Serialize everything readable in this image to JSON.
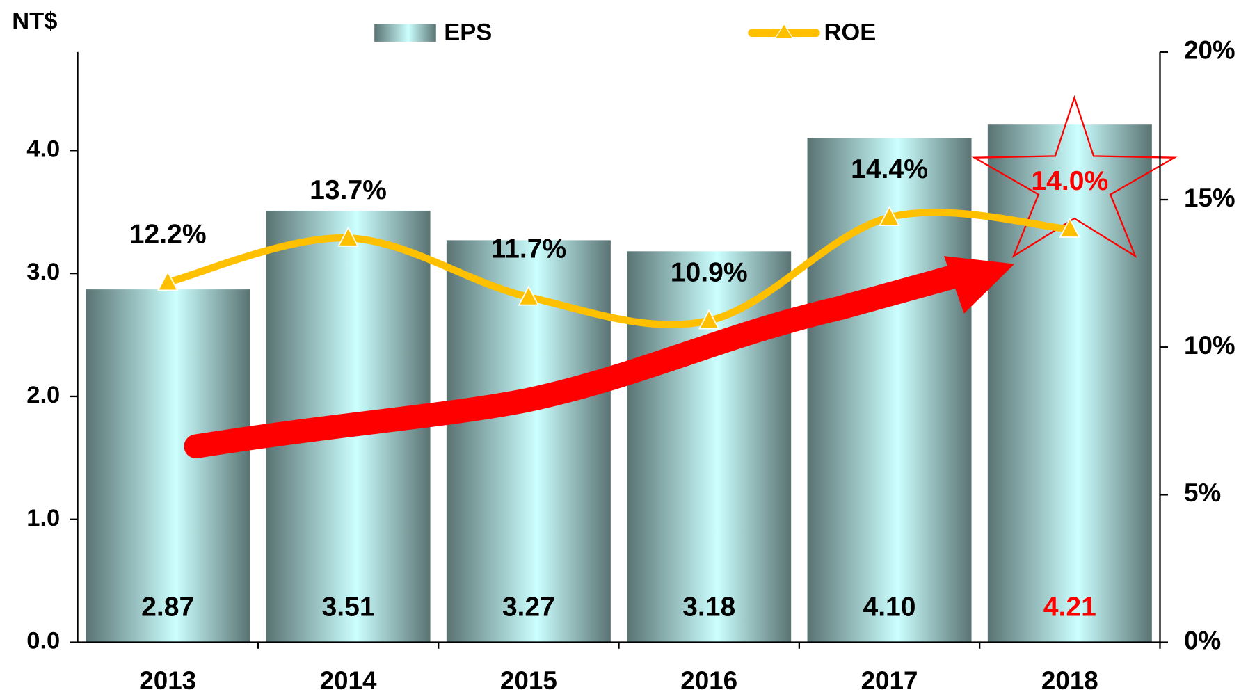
{
  "chart_data": {
    "type": "bar",
    "categories": [
      "2013",
      "2014",
      "2015",
      "2016",
      "2017",
      "2018"
    ],
    "y_label": "NT$",
    "series": [
      {
        "name": "EPS",
        "type": "bar",
        "color": "#ccffff",
        "edge_color": "#5a7373",
        "values": [
          2.87,
          3.51,
          3.27,
          3.18,
          4.1,
          4.21
        ],
        "value_labels": [
          "2.87",
          "3.51",
          "3.27",
          "3.18",
          "4.10",
          "4.21"
        ]
      },
      {
        "name": "ROE",
        "type": "line",
        "axis": "y2",
        "color": "#ffc000",
        "values": [
          12.2,
          13.7,
          11.7,
          10.9,
          14.4,
          14.0
        ],
        "value_labels": [
          "12.2%",
          "13.7%",
          "11.7%",
          "10.9%",
          "14.4%",
          "14.0%"
        ]
      }
    ],
    "highlight_index": 5,
    "highlight_color": "#ff0000",
    "ylim": [
      0,
      4.8
    ],
    "yticks": [
      {
        "value": 0,
        "label": "0.0"
      },
      {
        "value": 1,
        "label": "1.0"
      },
      {
        "value": 2,
        "label": "2.0"
      },
      {
        "value": 3,
        "label": "3.0"
      },
      {
        "value": 4,
        "label": "4.0"
      }
    ],
    "y2lim": [
      0,
      20
    ],
    "y2ticks": [
      {
        "value": 0,
        "label": "0%"
      },
      {
        "value": 5,
        "label": "5%"
      },
      {
        "value": 10,
        "label": "10%"
      },
      {
        "value": 15,
        "label": "15%"
      },
      {
        "value": 20,
        "label": "20%"
      }
    ],
    "grid": false
  }
}
